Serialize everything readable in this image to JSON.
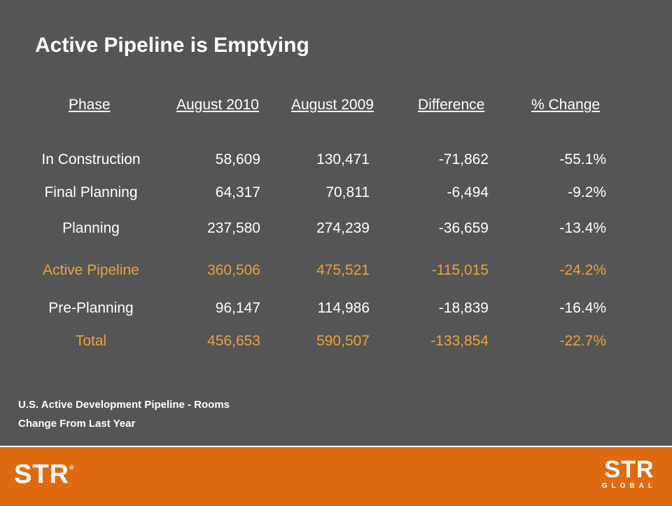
{
  "title": "Active Pipeline is Emptying",
  "headers": {
    "phase": "Phase",
    "august_2010": "August 2010",
    "august_2009": "August 2009",
    "difference": "Difference",
    "pct_change": "% Change"
  },
  "rows": [
    {
      "phase": "In Construction",
      "a2010": "58,609",
      "a2009": "130,471",
      "diff": "-71,862",
      "pct": "-55.1%"
    },
    {
      "phase": "Final Planning",
      "a2010": "64,317",
      "a2009": "70,811",
      "diff": "-6,494",
      "pct": "-9.2%"
    },
    {
      "phase": "Planning",
      "a2010": "237,580",
      "a2009": "274,239",
      "diff": "-36,659",
      "pct": "-13.4%"
    },
    {
      "phase": "Active Pipeline",
      "a2010": "360,506",
      "a2009": "475,521",
      "diff": "-115,015",
      "pct": "-24.2%"
    },
    {
      "phase": "Pre-Planning",
      "a2010": "96,147",
      "a2009": "114,986",
      "diff": "-18,839",
      "pct": "-16.4%"
    },
    {
      "phase": "Total",
      "a2010": "456,653",
      "a2009": "590,507",
      "diff": "-133,854",
      "pct": "-22.7%"
    }
  ],
  "notes": {
    "line1": "U.S. Active Development Pipeline - Rooms",
    "line2": "Change From Last Year"
  },
  "footer": {
    "logo_left": "STR",
    "logo_right_main": "STR",
    "logo_right_sub": "GLOBAL"
  },
  "colors": {
    "background": "#555555",
    "highlight": "#e8a23a",
    "footer": "#e06a12"
  }
}
